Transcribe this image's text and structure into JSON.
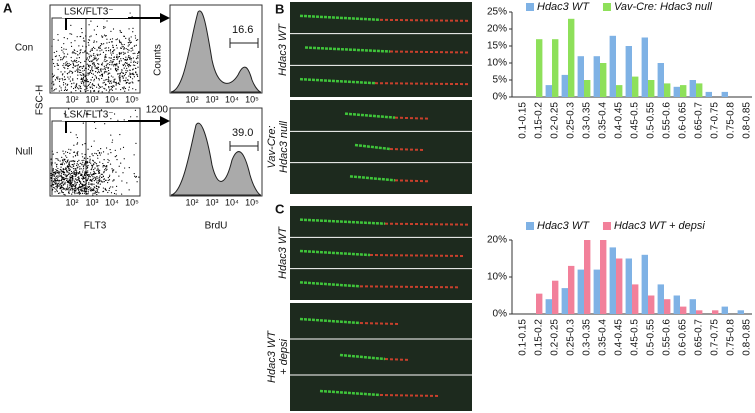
{
  "panel_labels": [
    "A",
    "B",
    "C"
  ],
  "flow": {
    "conditions": [
      "Con",
      "Null"
    ],
    "gate_label": "LSK/FLT3⁻",
    "scatter_y_label": "FSC-H",
    "scatter_x_label": "FLT3",
    "hist_y_label": "Counts",
    "hist_x_label": "BrdU",
    "hist_y_tick": "1200",
    "log_ticks": [
      "10²",
      "10³",
      "10⁴",
      "10⁵"
    ],
    "percentages": [
      "16.6",
      "39.0"
    ]
  },
  "images": {
    "b_labels": [
      [
        "Hdac3 WT"
      ],
      [
        "Vav-Cre:",
        "Hdac3 null"
      ]
    ],
    "c_labels": [
      [
        "Hdac3 WT"
      ],
      [
        "Hdac3 WT",
        "+ depsi"
      ]
    ]
  },
  "chart_data": [
    {
      "type": "bar",
      "categories": [
        "0.1-0.15",
        "0.15-0.2",
        "0.2-0.25",
        "0.25-0.3",
        "0.3-0.35",
        "0.35-0.4",
        "0.4-0.45",
        "0.45-0.5",
        "0.5-0.55",
        "0.55-0.6",
        "0.6-0.65",
        "0.65-0.7",
        "0.7-0.75",
        "0.75-0.8",
        "0.8-0.85"
      ],
      "series": [
        {
          "name": "Hdac3 WT",
          "color": "#7fb2e5",
          "values": [
            0,
            0,
            3.5,
            6.5,
            12,
            12,
            18,
            15,
            17.5,
            10,
            3,
            5,
            1.5,
            1.5,
            0
          ]
        },
        {
          "name": "Vav-Cre: Hdac3 null",
          "color": "#8ee05a",
          "values": [
            0,
            17,
            17,
            23,
            5,
            10,
            3.5,
            6,
            5,
            4,
            3.5,
            4,
            0,
            0,
            0
          ]
        }
      ],
      "ylim": [
        0,
        25
      ],
      "yticks": [
        {
          "value": 0,
          "label": "0%"
        },
        {
          "value": 5,
          "label": "5%"
        },
        {
          "value": 10,
          "label": "10%"
        },
        {
          "value": 15,
          "label": "15%"
        },
        {
          "value": 20,
          "label": "20%"
        },
        {
          "value": 25,
          "label": "25%"
        }
      ],
      "grid": false
    },
    {
      "type": "bar",
      "categories": [
        "0.1-0.15",
        "0.15-0.2",
        "0.2-0.25",
        "0.25-0.3",
        "0.3-0.35",
        "0.35-0.4",
        "0.4-0.45",
        "0.45-0.5",
        "0.5-0.55",
        "0.55-0.6",
        "0.6-0.65",
        "0.65-0.7",
        "0.7-0.75",
        "0.75-0.8",
        "0.8-0.85"
      ],
      "series": [
        {
          "name": "Hdac3 WT",
          "color": "#7fb2e5",
          "values": [
            0,
            0,
            4,
            7,
            12,
            12,
            18,
            15,
            16,
            8,
            5,
            4,
            0,
            2,
            1
          ]
        },
        {
          "name": "Hdac3 WT + depsi",
          "color": "#f2809a",
          "values": [
            0,
            5.5,
            9,
            13,
            20,
            20,
            15,
            8,
            5,
            4,
            2,
            1,
            1,
            0,
            0
          ]
        }
      ],
      "ylim": [
        0,
        20
      ],
      "yticks": [
        {
          "value": 0,
          "label": "0%"
        },
        {
          "value": 10,
          "label": "10%"
        },
        {
          "value": 20,
          "label": "20%"
        }
      ],
      "grid": false
    }
  ]
}
